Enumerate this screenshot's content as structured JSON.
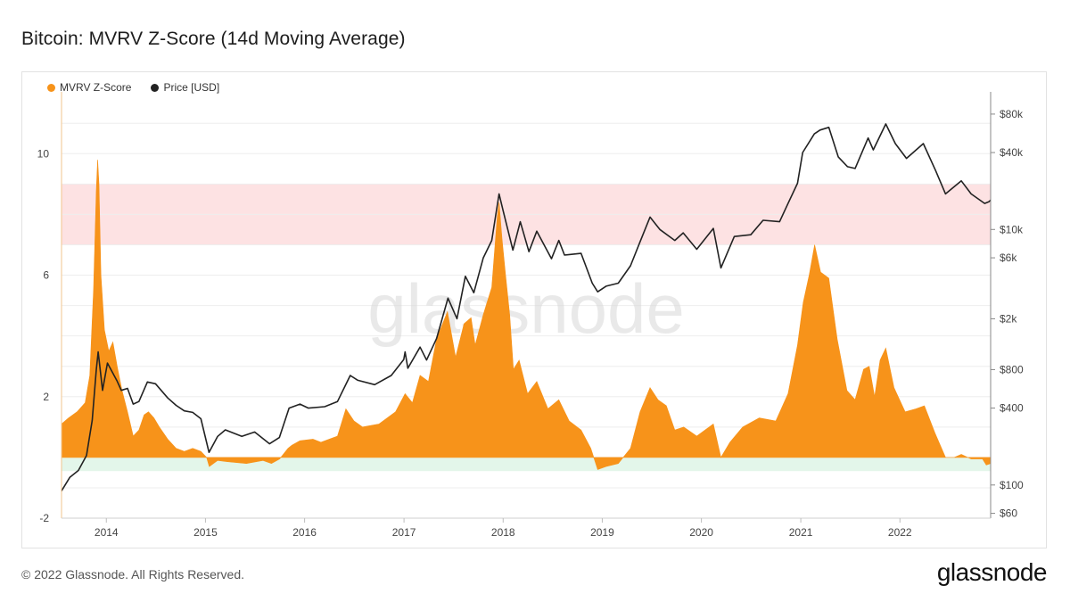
{
  "header": {
    "title": "Bitcoin: MVRV Z-Score (14d Moving Average)"
  },
  "legend": {
    "items": [
      {
        "label": "MVRV Z-Score",
        "color": "#f7931a"
      },
      {
        "label": "Price [USD]",
        "color": "#222222"
      }
    ]
  },
  "watermark": "glassnode",
  "footer": {
    "copyright": "© 2022 Glassnode. All Rights Reserved.",
    "brand": "glassnode"
  },
  "chart_data": {
    "type": "area",
    "title": "Bitcoin: MVRV Z-Score (14d Moving Average)",
    "x_ticks": [
      "2014",
      "2015",
      "2016",
      "2017",
      "2018",
      "2019",
      "2020",
      "2021",
      "2022"
    ],
    "y_left": {
      "ticks": [
        "10",
        "6",
        "2",
        "-2"
      ],
      "tick_values": [
        10,
        6,
        2,
        -2
      ],
      "range": [
        -2.0,
        11.8
      ]
    },
    "y_right": {
      "scale": "log",
      "ticks": [
        "$80k",
        "$40k",
        "$10k",
        "$6k",
        "$2k",
        "$800",
        "$400",
        "$100",
        "$60"
      ],
      "tick_values": [
        80000,
        40000,
        10000,
        6000,
        2000,
        800,
        400,
        100,
        60
      ]
    },
    "zones": [
      {
        "name": "overvalued",
        "from": 7.0,
        "to": 9.0,
        "color": "#fde2e3"
      },
      {
        "name": "undervalued",
        "from": -0.45,
        "to": 0.0,
        "color": "#e3f6ea"
      }
    ],
    "series": [
      {
        "name": "MVRV Z-Score",
        "color": "#f7931a",
        "points": [
          [
            "2013-07-20",
            1.1
          ],
          [
            "2013-08-15",
            1.3
          ],
          [
            "2013-09-15",
            1.5
          ],
          [
            "2013-10-15",
            1.8
          ],
          [
            "2013-11-01",
            2.7
          ],
          [
            "2013-11-15",
            5.5
          ],
          [
            "2013-11-25",
            8.8
          ],
          [
            "2013-11-30",
            9.8
          ],
          [
            "2013-12-05",
            9.0
          ],
          [
            "2013-12-12",
            6.0
          ],
          [
            "2013-12-25",
            4.2
          ],
          [
            "2014-01-10",
            3.5
          ],
          [
            "2014-01-25",
            3.8
          ],
          [
            "2014-02-10",
            3.0
          ],
          [
            "2014-02-28",
            2.2
          ],
          [
            "2014-03-20",
            1.5
          ],
          [
            "2014-04-10",
            0.7
          ],
          [
            "2014-05-01",
            0.9
          ],
          [
            "2014-05-20",
            1.4
          ],
          [
            "2014-06-05",
            1.5
          ],
          [
            "2014-06-25",
            1.3
          ],
          [
            "2014-07-15",
            1.0
          ],
          [
            "2014-08-15",
            0.6
          ],
          [
            "2014-09-15",
            0.3
          ],
          [
            "2014-10-15",
            0.2
          ],
          [
            "2014-11-15",
            0.3
          ],
          [
            "2014-12-15",
            0.2
          ],
          [
            "2015-01-05",
            0.0
          ],
          [
            "2015-01-15",
            -0.3
          ],
          [
            "2015-02-15",
            -0.1
          ],
          [
            "2015-04-01",
            -0.15
          ],
          [
            "2015-06-01",
            -0.2
          ],
          [
            "2015-08-01",
            -0.1
          ],
          [
            "2015-09-01",
            -0.2
          ],
          [
            "2015-10-01",
            -0.05
          ],
          [
            "2015-11-01",
            0.3
          ],
          [
            "2015-11-15",
            0.4
          ],
          [
            "2015-12-15",
            0.55
          ],
          [
            "2016-02-01",
            0.6
          ],
          [
            "2016-03-01",
            0.5
          ],
          [
            "2016-04-01",
            0.6
          ],
          [
            "2016-05-01",
            0.7
          ],
          [
            "2016-06-01",
            1.6
          ],
          [
            "2016-07-01",
            1.2
          ],
          [
            "2016-08-01",
            1.0
          ],
          [
            "2016-10-01",
            1.1
          ],
          [
            "2016-12-01",
            1.5
          ],
          [
            "2017-01-05",
            2.1
          ],
          [
            "2017-02-01",
            1.8
          ],
          [
            "2017-03-01",
            2.7
          ],
          [
            "2017-04-01",
            2.5
          ],
          [
            "2017-05-01",
            3.9
          ],
          [
            "2017-06-10",
            4.8
          ],
          [
            "2017-07-10",
            3.3
          ],
          [
            "2017-08-10",
            4.4
          ],
          [
            "2017-09-05",
            4.6
          ],
          [
            "2017-09-20",
            3.7
          ],
          [
            "2017-10-20",
            4.7
          ],
          [
            "2017-11-20",
            5.6
          ],
          [
            "2017-12-10",
            7.9
          ],
          [
            "2017-12-17",
            8.4
          ],
          [
            "2017-12-28",
            7.2
          ],
          [
            "2018-01-10",
            6.0
          ],
          [
            "2018-01-25",
            4.7
          ],
          [
            "2018-02-08",
            2.9
          ],
          [
            "2018-03-01",
            3.2
          ],
          [
            "2018-04-01",
            2.1
          ],
          [
            "2018-05-05",
            2.5
          ],
          [
            "2018-06-15",
            1.6
          ],
          [
            "2018-07-25",
            1.9
          ],
          [
            "2018-09-01",
            1.2
          ],
          [
            "2018-10-15",
            0.9
          ],
          [
            "2018-11-20",
            0.3
          ],
          [
            "2018-12-15",
            -0.4
          ],
          [
            "2019-01-15",
            -0.3
          ],
          [
            "2019-03-01",
            -0.2
          ],
          [
            "2019-04-15",
            0.3
          ],
          [
            "2019-05-20",
            1.5
          ],
          [
            "2019-06-26",
            2.3
          ],
          [
            "2019-07-25",
            1.9
          ],
          [
            "2019-08-25",
            1.7
          ],
          [
            "2019-09-25",
            0.9
          ],
          [
            "2019-10-28",
            1.0
          ],
          [
            "2019-12-15",
            0.7
          ],
          [
            "2020-02-14",
            1.1
          ],
          [
            "2020-03-13",
            0.0
          ],
          [
            "2020-04-15",
            0.5
          ],
          [
            "2020-06-01",
            1.0
          ],
          [
            "2020-08-01",
            1.3
          ],
          [
            "2020-10-01",
            1.2
          ],
          [
            "2020-11-15",
            2.1
          ],
          [
            "2020-12-20",
            3.7
          ],
          [
            "2021-01-10",
            5.1
          ],
          [
            "2021-02-01",
            6.0
          ],
          [
            "2021-02-21",
            7.0
          ],
          [
            "2021-03-15",
            6.1
          ],
          [
            "2021-04-14",
            5.9
          ],
          [
            "2021-05-15",
            3.9
          ],
          [
            "2021-06-20",
            2.2
          ],
          [
            "2021-07-20",
            1.9
          ],
          [
            "2021-08-20",
            2.9
          ],
          [
            "2021-09-10",
            3.0
          ],
          [
            "2021-09-30",
            2.0
          ],
          [
            "2021-10-20",
            3.2
          ],
          [
            "2021-11-10",
            3.6
          ],
          [
            "2021-12-10",
            2.3
          ],
          [
            "2022-01-20",
            1.5
          ],
          [
            "2022-03-01",
            1.6
          ],
          [
            "2022-04-01",
            1.7
          ],
          [
            "2022-05-10",
            0.8
          ],
          [
            "2022-06-18",
            0.0
          ],
          [
            "2022-07-20",
            0.0
          ],
          [
            "2022-08-15",
            0.1
          ],
          [
            "2022-09-20",
            -0.05
          ],
          [
            "2022-11-01",
            -0.05
          ],
          [
            "2022-11-15",
            -0.25
          ],
          [
            "2022-12-01",
            -0.2
          ]
        ]
      },
      {
        "name": "Price [USD]",
        "color": "#222222",
        "points": [
          [
            "2013-07-20",
            90
          ],
          [
            "2013-08-20",
            115
          ],
          [
            "2013-09-20",
            130
          ],
          [
            "2013-10-20",
            170
          ],
          [
            "2013-11-10",
            320
          ],
          [
            "2013-11-25",
            800
          ],
          [
            "2013-12-02",
            1100
          ],
          [
            "2013-12-18",
            550
          ],
          [
            "2014-01-05",
            900
          ],
          [
            "2014-02-10",
            650
          ],
          [
            "2014-02-25",
            550
          ],
          [
            "2014-03-20",
            570
          ],
          [
            "2014-04-10",
            430
          ],
          [
            "2014-05-01",
            450
          ],
          [
            "2014-06-01",
            640
          ],
          [
            "2014-07-01",
            620
          ],
          [
            "2014-08-15",
            480
          ],
          [
            "2014-09-15",
            420
          ],
          [
            "2014-10-15",
            380
          ],
          [
            "2014-11-15",
            370
          ],
          [
            "2014-12-15",
            330
          ],
          [
            "2015-01-14",
            180
          ],
          [
            "2015-02-15",
            240
          ],
          [
            "2015-03-15",
            270
          ],
          [
            "2015-05-15",
            240
          ],
          [
            "2015-07-01",
            260
          ],
          [
            "2015-08-25",
            210
          ],
          [
            "2015-09-30",
            235
          ],
          [
            "2015-11-05",
            400
          ],
          [
            "2015-12-15",
            430
          ],
          [
            "2016-01-15",
            400
          ],
          [
            "2016-03-15",
            410
          ],
          [
            "2016-05-01",
            450
          ],
          [
            "2016-06-17",
            720
          ],
          [
            "2016-07-15",
            660
          ],
          [
            "2016-09-15",
            610
          ],
          [
            "2016-11-15",
            720
          ],
          [
            "2016-12-31",
            960
          ],
          [
            "2017-01-05",
            1100
          ],
          [
            "2017-01-15",
            820
          ],
          [
            "2017-03-01",
            1200
          ],
          [
            "2017-03-25",
            950
          ],
          [
            "2017-05-01",
            1400
          ],
          [
            "2017-06-12",
            2900
          ],
          [
            "2017-07-15",
            2000
          ],
          [
            "2017-08-15",
            4300
          ],
          [
            "2017-09-15",
            3200
          ],
          [
            "2017-10-20",
            6000
          ],
          [
            "2017-11-20",
            8200
          ],
          [
            "2017-12-17",
            19000
          ],
          [
            "2018-01-01",
            14000
          ],
          [
            "2018-02-06",
            6900
          ],
          [
            "2018-03-05",
            11500
          ],
          [
            "2018-04-06",
            6700
          ],
          [
            "2018-05-05",
            9700
          ],
          [
            "2018-06-28",
            5900
          ],
          [
            "2018-07-25",
            8200
          ],
          [
            "2018-08-15",
            6300
          ],
          [
            "2018-10-15",
            6500
          ],
          [
            "2018-11-25",
            3800
          ],
          [
            "2018-12-15",
            3250
          ],
          [
            "2019-01-15",
            3600
          ],
          [
            "2019-03-01",
            3800
          ],
          [
            "2019-04-15",
            5200
          ],
          [
            "2019-05-20",
            8000
          ],
          [
            "2019-06-26",
            12500
          ],
          [
            "2019-08-01",
            10000
          ],
          [
            "2019-09-25",
            8200
          ],
          [
            "2019-10-26",
            9400
          ],
          [
            "2019-12-15",
            7000
          ],
          [
            "2020-02-14",
            10200
          ],
          [
            "2020-03-13",
            5000
          ],
          [
            "2020-05-01",
            8800
          ],
          [
            "2020-07-01",
            9100
          ],
          [
            "2020-08-15",
            11800
          ],
          [
            "2020-10-15",
            11500
          ],
          [
            "2020-11-15",
            16000
          ],
          [
            "2020-12-20",
            23000
          ],
          [
            "2021-01-08",
            40000
          ],
          [
            "2021-02-20",
            56000
          ],
          [
            "2021-03-13",
            60000
          ],
          [
            "2021-04-14",
            63000
          ],
          [
            "2021-05-19",
            37000
          ],
          [
            "2021-06-22",
            31000
          ],
          [
            "2021-07-20",
            30000
          ],
          [
            "2021-09-06",
            52000
          ],
          [
            "2021-09-25",
            42000
          ],
          [
            "2021-11-10",
            67000
          ],
          [
            "2021-12-15",
            47000
          ],
          [
            "2022-01-25",
            36000
          ],
          [
            "2022-03-28",
            47000
          ],
          [
            "2022-05-12",
            29000
          ],
          [
            "2022-06-18",
            19000
          ],
          [
            "2022-08-15",
            24000
          ],
          [
            "2022-09-20",
            19000
          ],
          [
            "2022-11-09",
            16000
          ],
          [
            "2022-11-25",
            16500
          ],
          [
            "2022-12-01",
            17000
          ]
        ]
      }
    ],
    "x_range": [
      "2013-07-20",
      "2022-12-01"
    ],
    "legend_position": "top-left",
    "grid": true
  }
}
